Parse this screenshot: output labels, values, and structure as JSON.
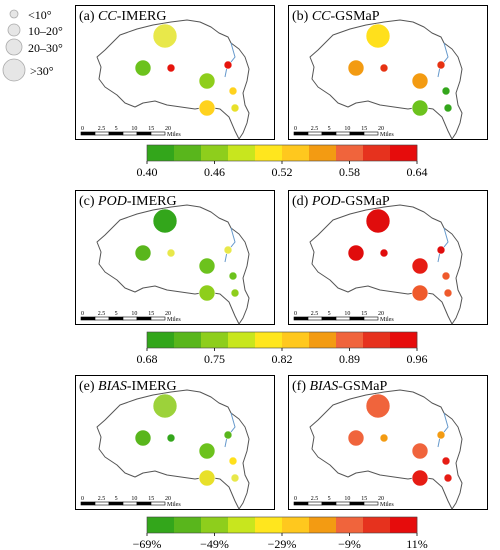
{
  "legend": {
    "items": [
      {
        "label": "<10°",
        "r": 4
      },
      {
        "label": "10–20°",
        "r": 6
      },
      {
        "label": "20–30°",
        "r": 8
      },
      {
        "label": ">30°",
        "r": 11
      }
    ]
  },
  "scale_bar": {
    "ticks": [
      "0",
      "2.5",
      "5",
      "10",
      "15",
      "20"
    ],
    "unit": "Miles"
  },
  "panels": [
    {
      "letter": "(a)",
      "metric": "CC",
      "product": "-IMERG",
      "points": [
        {
          "size": 4,
          "color": "#e8e84a"
        },
        {
          "size": 2,
          "color": "#6cc21d"
        },
        {
          "size": 1,
          "color": "#e6140c"
        },
        {
          "size": 1,
          "color": "#e6140c"
        },
        {
          "size": 2,
          "color": "#8ece1c"
        },
        {
          "size": 1,
          "color": "#ffd21e"
        },
        {
          "size": 2,
          "color": "#ffd21e"
        },
        {
          "size": 1,
          "color": "#e8e02a"
        }
      ]
    },
    {
      "letter": "(b)",
      "metric": "CC",
      "product": "-GSMaP",
      "points": [
        {
          "size": 4,
          "color": "#ffe01c"
        },
        {
          "size": 2,
          "color": "#f39b12"
        },
        {
          "size": 1,
          "color": "#e63212"
        },
        {
          "size": 1,
          "color": "#e63212"
        },
        {
          "size": 2,
          "color": "#f39b12"
        },
        {
          "size": 1,
          "color": "#33a61b"
        },
        {
          "size": 2,
          "color": "#6cc21d"
        },
        {
          "size": 1,
          "color": "#33a61b"
        }
      ]
    },
    {
      "letter": "(c)",
      "metric": "POD",
      "product": "-IMERG",
      "points": [
        {
          "size": 4,
          "color": "#33a61b"
        },
        {
          "size": 2,
          "color": "#59b61c"
        },
        {
          "size": 1,
          "color": "#e8e84a"
        },
        {
          "size": 1,
          "color": "#e8e84a"
        },
        {
          "size": 2,
          "color": "#6cc21d"
        },
        {
          "size": 1,
          "color": "#6cc21d"
        },
        {
          "size": 2,
          "color": "#8ece1c"
        },
        {
          "size": 1,
          "color": "#8ece1c"
        }
      ]
    },
    {
      "letter": "(d)",
      "metric": "POD",
      "product": "-GSMaP",
      "points": [
        {
          "size": 4,
          "color": "#e00c0c"
        },
        {
          "size": 2,
          "color": "#e00c0c"
        },
        {
          "size": 1,
          "color": "#e00c0c"
        },
        {
          "size": 1,
          "color": "#e00c0c"
        },
        {
          "size": 2,
          "color": "#e61c14"
        },
        {
          "size": 1,
          "color": "#ef5a2c"
        },
        {
          "size": 2,
          "color": "#ef5a2c"
        },
        {
          "size": 1,
          "color": "#ef5a2c"
        }
      ]
    },
    {
      "letter": "(e)",
      "metric": "BIAS",
      "product": "-IMERG",
      "points": [
        {
          "size": 4,
          "color": "#9cd23a"
        },
        {
          "size": 2,
          "color": "#59b61c"
        },
        {
          "size": 1,
          "color": "#33a61b"
        },
        {
          "size": 1,
          "color": "#59b61c"
        },
        {
          "size": 2,
          "color": "#6cc21d"
        },
        {
          "size": 1,
          "color": "#ffe01c"
        },
        {
          "size": 2,
          "color": "#e8e02a"
        },
        {
          "size": 1,
          "color": "#e8e84a"
        }
      ]
    },
    {
      "letter": "(f)",
      "metric": "BIAS",
      "product": "-GSMaP",
      "points": [
        {
          "size": 4,
          "color": "#f0643c"
        },
        {
          "size": 2,
          "color": "#f0643c"
        },
        {
          "size": 1,
          "color": "#f39b12"
        },
        {
          "size": 1,
          "color": "#f39b12"
        },
        {
          "size": 2,
          "color": "#f0643c"
        },
        {
          "size": 1,
          "color": "#e61c14"
        },
        {
          "size": 2,
          "color": "#e61c14"
        },
        {
          "size": 1,
          "color": "#e61c14"
        }
      ]
    }
  ],
  "colorbars": [
    {
      "ticks": [
        "0.40",
        "0.46",
        "0.52",
        "0.58",
        "0.64"
      ]
    },
    {
      "ticks": [
        "0.68",
        "0.75",
        "0.82",
        "0.89",
        "0.96"
      ]
    },
    {
      "ticks": [
        "−69%",
        "−49%",
        "−29%",
        "−9%",
        "11%"
      ]
    }
  ],
  "colorbar_palette": [
    "#33a61b",
    "#59b61c",
    "#8ece1c",
    "#c8e61e",
    "#ffe61e",
    "#ffc81e",
    "#f39b12",
    "#f0643c",
    "#e6321e",
    "#e60c0c"
  ]
}
